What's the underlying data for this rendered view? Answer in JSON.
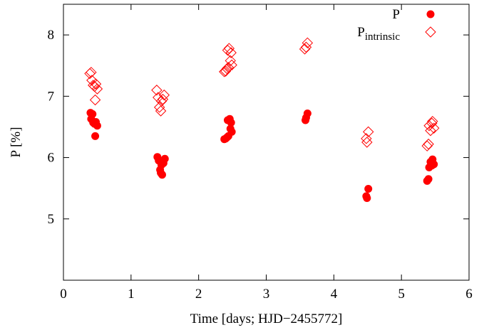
{
  "chart_data": {
    "type": "scatter",
    "title": "",
    "xlabel": "Time [days; HJD−2455772]",
    "ylabel": "P [%]",
    "xlim": [
      0,
      6
    ],
    "ylim": [
      4,
      8.5
    ],
    "xticks": [
      "0",
      "1",
      "2",
      "3",
      "4",
      "5",
      "6"
    ],
    "yticks": [
      "5",
      "6",
      "7",
      "8"
    ],
    "grid": false,
    "legend_position": "top-right",
    "series": [
      {
        "name": "P",
        "marker": "filled-circle",
        "color": "#ff0000",
        "points": [
          [
            0.4,
            6.73
          ],
          [
            0.41,
            6.63
          ],
          [
            0.43,
            6.71
          ],
          [
            0.44,
            6.57
          ],
          [
            0.46,
            6.55
          ],
          [
            0.48,
            6.58
          ],
          [
            0.5,
            6.52
          ],
          [
            0.47,
            6.35
          ],
          [
            1.39,
            6.01
          ],
          [
            1.41,
            5.95
          ],
          [
            1.43,
            5.8
          ],
          [
            1.44,
            5.75
          ],
          [
            1.46,
            5.72
          ],
          [
            1.45,
            5.88
          ],
          [
            1.48,
            5.91
          ],
          [
            1.5,
            5.98
          ],
          [
            2.38,
            6.3
          ],
          [
            2.4,
            6.31
          ],
          [
            2.42,
            6.33
          ],
          [
            2.44,
            6.35
          ],
          [
            2.43,
            6.61
          ],
          [
            2.46,
            6.63
          ],
          [
            2.48,
            6.57
          ],
          [
            2.47,
            6.47
          ],
          [
            2.49,
            6.42
          ],
          [
            3.58,
            6.61
          ],
          [
            3.59,
            6.65
          ],
          [
            3.61,
            6.72
          ],
          [
            4.48,
            5.37
          ],
          [
            4.49,
            5.34
          ],
          [
            4.51,
            5.49
          ],
          [
            5.38,
            5.62
          ],
          [
            5.4,
            5.65
          ],
          [
            5.41,
            5.84
          ],
          [
            5.43,
            5.93
          ],
          [
            5.45,
            5.87
          ],
          [
            5.46,
            5.97
          ],
          [
            5.48,
            5.89
          ]
        ]
      },
      {
        "name": "P",
        "name_subscript": "intrinsic",
        "marker": "open-diamond",
        "color": "#ff0000",
        "points": [
          [
            0.39,
            7.37
          ],
          [
            0.41,
            7.39
          ],
          [
            0.42,
            7.26
          ],
          [
            0.44,
            7.18
          ],
          [
            0.46,
            7.16
          ],
          [
            0.48,
            7.2
          ],
          [
            0.5,
            7.12
          ],
          [
            0.47,
            6.94
          ],
          [
            1.38,
            7.1
          ],
          [
            1.4,
            6.98
          ],
          [
            1.42,
            6.82
          ],
          [
            1.44,
            6.76
          ],
          [
            1.45,
            6.92
          ],
          [
            1.47,
            6.95
          ],
          [
            1.49,
            7.02
          ],
          [
            2.38,
            7.4
          ],
          [
            2.4,
            7.41
          ],
          [
            2.42,
            7.45
          ],
          [
            2.44,
            7.47
          ],
          [
            2.43,
            7.75
          ],
          [
            2.45,
            7.78
          ],
          [
            2.48,
            7.71
          ],
          [
            2.47,
            7.58
          ],
          [
            2.49,
            7.51
          ],
          [
            3.57,
            7.77
          ],
          [
            3.59,
            7.8
          ],
          [
            3.61,
            7.87
          ],
          [
            4.48,
            6.31
          ],
          [
            4.49,
            6.25
          ],
          [
            4.51,
            6.42
          ],
          [
            5.38,
            6.19
          ],
          [
            5.4,
            6.22
          ],
          [
            5.41,
            6.52
          ],
          [
            5.43,
            6.44
          ],
          [
            5.45,
            6.56
          ],
          [
            5.46,
            6.59
          ],
          [
            5.48,
            6.48
          ]
        ]
      }
    ]
  }
}
